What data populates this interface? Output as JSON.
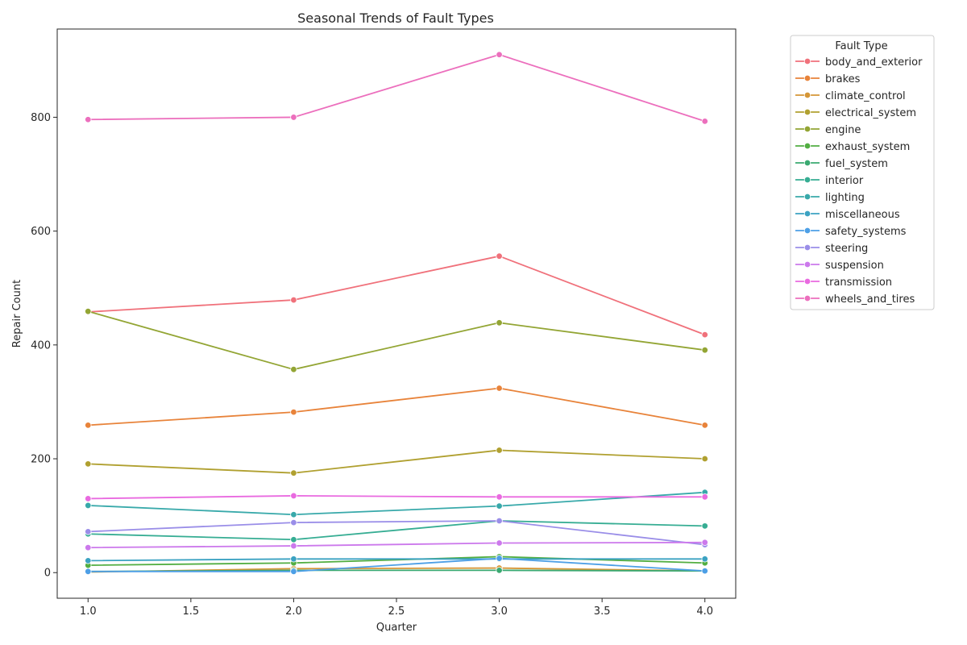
{
  "chart_data": {
    "type": "line",
    "title": "Seasonal Trends of Fault Types",
    "xlabel": "Quarter",
    "ylabel": "Repair Count",
    "x": [
      1.0,
      2.0,
      3.0,
      4.0
    ],
    "xlim": [
      0.85,
      4.15
    ],
    "ylim": [
      -45,
      955
    ],
    "xticks": [
      1.0,
      1.5,
      2.0,
      2.5,
      3.0,
      3.5,
      4.0
    ],
    "xtick_labels": [
      "1.0",
      "1.5",
      "2.0",
      "2.5",
      "3.0",
      "3.5",
      "4.0"
    ],
    "yticks": [
      0,
      200,
      400,
      600,
      800
    ],
    "ytick_labels": [
      "0",
      "200",
      "400",
      "600",
      "800"
    ],
    "grid": false,
    "legend": {
      "title": "Fault Type",
      "placement": "outside-right"
    },
    "series": [
      {
        "name": "body_and_exterior",
        "color": "#f0717b",
        "values": [
          458,
          479,
          556,
          418
        ]
      },
      {
        "name": "brakes",
        "color": "#e8833a",
        "values": [
          259,
          282,
          324,
          259
        ]
      },
      {
        "name": "climate_control",
        "color": "#d59637",
        "values": [
          1,
          7,
          8,
          3
        ]
      },
      {
        "name": "electrical_system",
        "color": "#b0a030",
        "values": [
          191,
          175,
          215,
          200
        ]
      },
      {
        "name": "engine",
        "color": "#93a534",
        "values": [
          459,
          357,
          439,
          391
        ]
      },
      {
        "name": "exhaust_system",
        "color": "#52ae42",
        "values": [
          13,
          17,
          28,
          17
        ]
      },
      {
        "name": "fuel_system",
        "color": "#3aa971",
        "values": [
          2,
          4,
          4,
          3
        ]
      },
      {
        "name": "interior",
        "color": "#36ad93",
        "values": [
          68,
          58,
          91,
          82
        ]
      },
      {
        "name": "lighting",
        "color": "#38a9aa",
        "values": [
          118,
          102,
          117,
          141
        ]
      },
      {
        "name": "miscellaneous",
        "color": "#3ba2c2",
        "values": [
          21,
          24,
          24,
          24
        ]
      },
      {
        "name": "safety_systems",
        "color": "#4d9fe6",
        "values": [
          2,
          2,
          25,
          3
        ]
      },
      {
        "name": "steering",
        "color": "#9a8ee8",
        "values": [
          72,
          88,
          91,
          49
        ]
      },
      {
        "name": "suspension",
        "color": "#cc79ec",
        "values": [
          44,
          47,
          52,
          53
        ]
      },
      {
        "name": "transmission",
        "color": "#e96ae0",
        "values": [
          130,
          135,
          133,
          133
        ]
      },
      {
        "name": "wheels_and_tires",
        "color": "#ec6fbd",
        "values": [
          796,
          800,
          910,
          793
        ]
      }
    ]
  }
}
